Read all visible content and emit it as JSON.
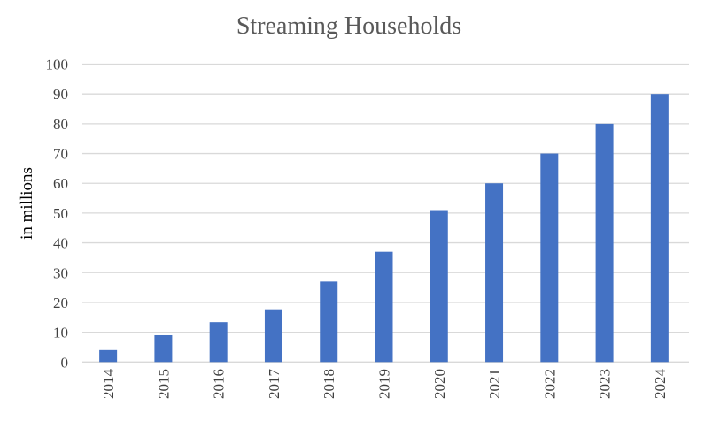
{
  "chart_data": {
    "type": "bar",
    "title": "Streaming Households",
    "xlabel": "",
    "ylabel": "in millions",
    "categories": [
      "2014",
      "2015",
      "2016",
      "2017",
      "2018",
      "2019",
      "2020",
      "2021",
      "2022",
      "2023",
      "2024"
    ],
    "values": [
      4,
      9,
      13.4,
      17.7,
      27,
      37,
      51,
      60,
      70,
      80,
      90
    ],
    "ylim": [
      0,
      100
    ],
    "yticks": [
      0,
      10,
      20,
      30,
      40,
      50,
      60,
      70,
      80,
      90,
      100
    ],
    "grid": true,
    "legend": "none",
    "colors": {
      "bar": "#4472C4",
      "grid": "#D9D9D9",
      "text": "#595959",
      "axis_text": "#404040"
    }
  }
}
